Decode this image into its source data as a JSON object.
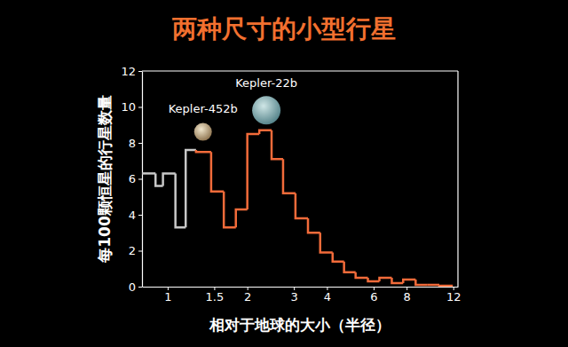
{
  "chart_data": {
    "type": "histogram",
    "title": "两种尺寸的小型行星",
    "x_label": "相对于地球的大小（半径）",
    "y_label": "每100颗恒星的行星数量",
    "log": "x",
    "bins": [
      0.8,
      0.9,
      0.96,
      1.07,
      1.17,
      1.28,
      1.46,
      1.63,
      1.81,
      2.0,
      2.22,
      2.47,
      2.73,
      3.04,
      3.39,
      3.77,
      4.2,
      4.64,
      5.13,
      5.71,
      6.31,
      7.03,
      7.76,
      8.65,
      9.55,
      10.63,
      11.84
    ],
    "values": [
      6.3,
      5.6,
      6.3,
      3.3,
      7.6,
      7.5,
      5.3,
      3.3,
      4.3,
      8.5,
      8.7,
      7.1,
      5.2,
      3.8,
      3.0,
      1.9,
      1.4,
      0.8,
      0.5,
      0.3,
      0.5,
      0.2,
      0.4,
      0.1,
      0.1,
      0.05
    ],
    "colors": [
      "#c8c8c8",
      "#c8c8c8",
      "#c8c8c8",
      "#c8c8c8",
      "#c8c8c8",
      "#f26b3a",
      "#f26b3a",
      "#f26b3a",
      "#f26b3a",
      "#f26b3a",
      "#f26b3a",
      "#f26b3a",
      "#f26b3a",
      "#f26b3a",
      "#f26b3a",
      "#f26b3a",
      "#f26b3a",
      "#f26b3a",
      "#f26b3a",
      "#f26b3a",
      "#f26b3a",
      "#f26b3a",
      "#f26b3a",
      "#f26b3a",
      "#f26b3a",
      "#f26b3a"
    ],
    "xlim": [
      0.8,
      12.5
    ],
    "ylim": [
      0,
      12
    ],
    "xticks": [
      1,
      1.5,
      2,
      3,
      4,
      6,
      8,
      12
    ],
    "yticks": [
      0,
      2,
      4,
      6,
      8,
      10,
      12
    ],
    "annotations": [
      {
        "text": "Kepler-452b",
        "x": 1.36,
        "y": 9.7
      },
      {
        "text": "Kepler-22b",
        "x": 2.36,
        "y": 11.1
      }
    ]
  }
}
